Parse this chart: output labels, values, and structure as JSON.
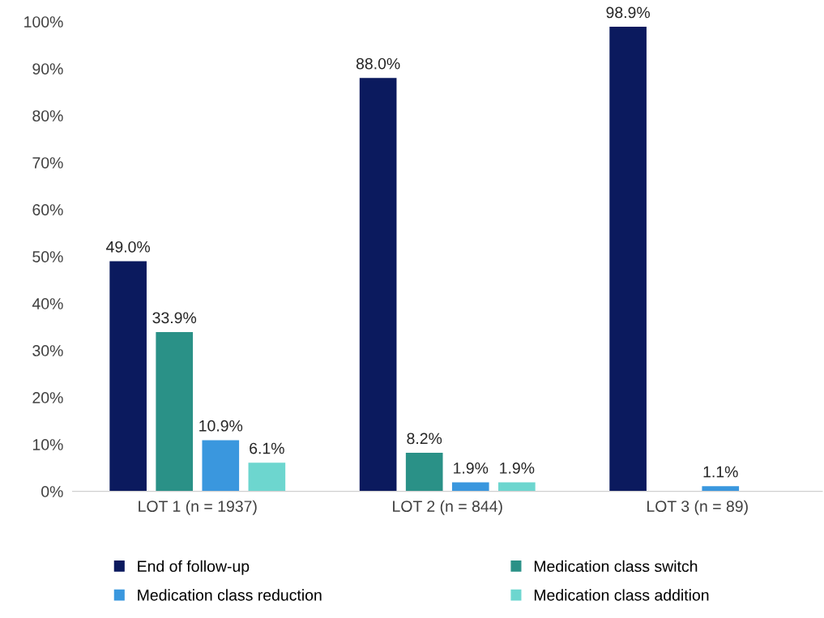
{
  "chart_data": {
    "type": "bar",
    "categories": [
      "LOT 1 (n = 1937)",
      "LOT 2 (n = 844)",
      "LOT 3 (n = 89)"
    ],
    "series": [
      {
        "name": "End of follow-up",
        "color": "#0b1a5e",
        "values": [
          49.0,
          88.0,
          98.9
        ],
        "value_labels": [
          "49.0%",
          "88.0%",
          "98.9%"
        ]
      },
      {
        "name": "Medication class switch",
        "color": "#2a9187",
        "values": [
          33.9,
          8.2,
          null
        ],
        "value_labels": [
          "33.9%",
          "8.2%",
          null
        ]
      },
      {
        "name": "Medication class reduction",
        "color": "#3a97de",
        "values": [
          10.9,
          1.9,
          1.1
        ],
        "value_labels": [
          "10.9%",
          "1.9%",
          "1.1%"
        ]
      },
      {
        "name": "Medication class addition",
        "color": "#6dd6cf",
        "values": [
          6.1,
          1.9,
          null
        ],
        "value_labels": [
          "6.1%",
          "1.9%",
          null
        ]
      }
    ],
    "ylim": [
      0,
      100
    ],
    "yticks": [
      {
        "value": 0,
        "label": "0%"
      },
      {
        "value": 10,
        "label": "10%"
      },
      {
        "value": 20,
        "label": "20%"
      },
      {
        "value": 30,
        "label": "30%"
      },
      {
        "value": 40,
        "label": "40%"
      },
      {
        "value": 50,
        "label": "50%"
      },
      {
        "value": 60,
        "label": "60%"
      },
      {
        "value": 70,
        "label": "70%"
      },
      {
        "value": 80,
        "label": "80%"
      },
      {
        "value": 90,
        "label": "90%"
      },
      {
        "value": 100,
        "label": "100%"
      }
    ],
    "grid": false,
    "legend": "bottom"
  }
}
